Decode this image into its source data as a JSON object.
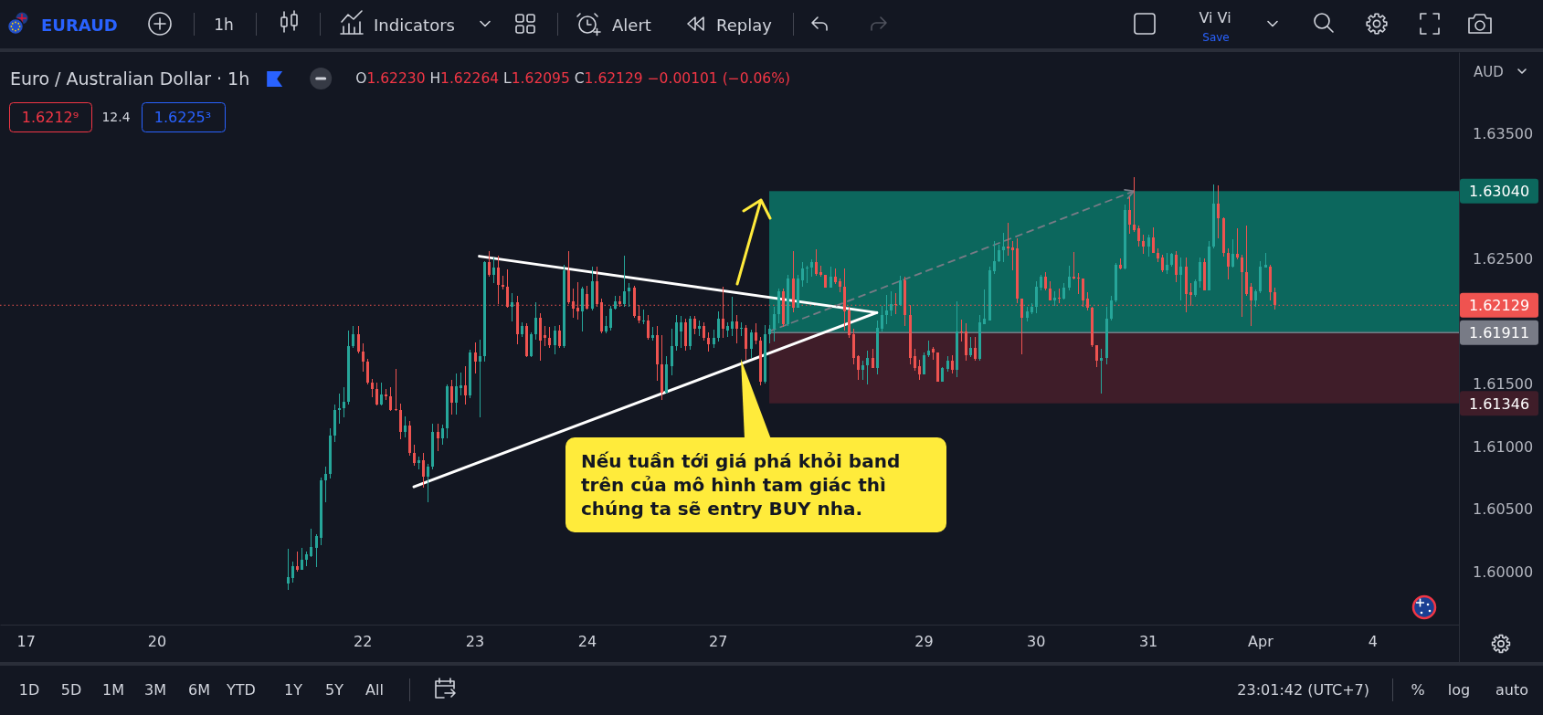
{
  "chart_data": {
    "type": "candlestick",
    "title": "Euro / Australian Dollar · 1h",
    "subtitle": "O1.62230 H1.62264 L1.62095 C1.62129 −0.00101 (−0.06%)",
    "categories": [
      null,
      null,
      null,
      null,
      null,
      "17",
      null,
      null,
      null,
      null,
      null,
      null,
      null,
      null,
      null,
      null,
      null,
      null,
      null,
      null,
      null,
      null,
      null,
      null,
      null,
      null,
      null,
      null,
      null,
      null,
      null,
      null,
      null,
      "20",
      null,
      null,
      null,
      null,
      null,
      null,
      null,
      null,
      null,
      null,
      null,
      null,
      null,
      null,
      null,
      null,
      null,
      null,
      null,
      null,
      null,
      null,
      null,
      null,
      null,
      null,
      null,
      null,
      null,
      null,
      null,
      null,
      null,
      null,
      null,
      null,
      null,
      null,
      null,
      null,
      null,
      null,
      null,
      "22",
      null,
      null,
      null,
      null,
      null,
      null,
      null,
      null,
      null,
      null,
      null,
      null,
      null,
      null,
      null,
      null,
      null,
      null,
      null,
      null,
      null,
      null,
      null,
      "23",
      null,
      null,
      null,
      null,
      null,
      null,
      null,
      null,
      null,
      null,
      null,
      null,
      null,
      null,
      null,
      null,
      null,
      null,
      null,
      null,
      null,
      null,
      null,
      "24",
      null,
      null,
      null,
      null,
      null,
      null,
      null,
      null,
      null,
      null,
      null,
      null,
      null,
      null,
      null,
      null,
      null,
      null,
      null,
      null,
      null,
      null,
      null,
      null,
      null,
      null,
      null,
      "27",
      null,
      null,
      null,
      null,
      null,
      null,
      null,
      null,
      null,
      null,
      null,
      null,
      null,
      null,
      null,
      null,
      null,
      null,
      null,
      null,
      null,
      null,
      null,
      null,
      null,
      null,
      null,
      null,
      null,
      null,
      null,
      null,
      null,
      null,
      null,
      null,
      null,
      null,
      null,
      null,
      null,
      null,
      null,
      "29",
      null,
      null,
      null,
      null,
      null,
      null,
      null,
      null,
      null,
      null,
      null,
      null,
      null,
      null,
      null,
      null,
      null,
      null,
      null,
      null,
      null,
      null,
      null,
      "30",
      null,
      null,
      null,
      null,
      null,
      null,
      null,
      null,
      null,
      null,
      null,
      null,
      null,
      null,
      null,
      null,
      null,
      null,
      null,
      null,
      null,
      null,
      null,
      "31",
      null,
      null,
      null,
      null,
      null,
      null,
      null,
      null,
      null,
      null,
      null,
      null,
      null,
      null,
      null,
      null,
      null,
      null,
      null,
      null,
      null,
      null,
      null,
      "Apr",
      null,
      null,
      null,
      null,
      null,
      null,
      null,
      null,
      null,
      null,
      null,
      null,
      null,
      null,
      null,
      null,
      null,
      null,
      null,
      null,
      null,
      null,
      null,
      "4",
      null,
      null,
      null,
      null,
      null,
      null,
      null,
      null,
      null,
      null,
      null,
      null,
      null,
      null,
      null,
      null,
      null,
      null
    ],
    "ohlc": [
      null,
      null,
      null,
      null,
      null,
      null,
      null,
      null,
      null,
      null,
      null,
      null,
      null,
      null,
      null,
      null,
      null,
      null,
      null,
      null,
      null,
      null,
      null,
      null,
      null,
      null,
      null,
      null,
      null,
      null,
      null,
      null,
      null,
      null,
      null,
      null,
      null,
      null,
      null,
      null,
      null,
      null,
      null,
      null,
      null,
      null,
      null,
      null,
      null,
      null,
      null,
      null,
      null,
      null,
      null,
      null,
      null,
      null,
      null,
      null,
      null,
      [
        1.5991,
        1.6018,
        1.5986,
        1.5996
      ],
      [
        1.5995,
        1.6008,
        1.5992,
        1.6005
      ],
      [
        1.6005,
        1.6016,
        1.6001,
        1.6002
      ],
      [
        1.6002,
        1.6019,
        1.6002,
        1.601
      ],
      [
        1.601,
        1.6016,
        1.6005,
        1.6014
      ],
      [
        1.6013,
        1.6034,
        1.6012,
        1.602
      ],
      [
        1.6019,
        1.603,
        1.6004,
        1.6029
      ],
      [
        1.6027,
        1.6075,
        1.6022,
        1.6073
      ],
      [
        1.6073,
        1.6084,
        1.6056,
        1.6078
      ],
      [
        1.6078,
        1.6114,
        1.6075,
        1.6109
      ],
      [
        1.6109,
        1.6133,
        1.6104,
        1.6129
      ],
      [
        1.6129,
        1.6142,
        1.6119,
        1.6131
      ],
      [
        1.6131,
        1.6147,
        1.6124,
        1.6136
      ],
      [
        1.6136,
        1.6192,
        1.6134,
        1.618
      ],
      [
        1.618,
        1.6196,
        1.6179,
        1.619
      ],
      [
        1.619,
        1.6196,
        1.6175,
        1.6176
      ],
      [
        1.6176,
        1.6182,
        1.616,
        1.6168
      ],
      [
        1.6168,
        1.617,
        1.615,
        1.6151
      ],
      [
        1.6151,
        1.6154,
        1.614,
        1.6146
      ],
      [
        1.6146,
        1.6151,
        1.6133,
        1.6134
      ],
      [
        1.6134,
        1.6151,
        1.6133,
        1.6142
      ],
      [
        1.6142,
        1.6146,
        1.6138,
        1.614
      ],
      [
        1.614,
        1.6147,
        1.6129,
        1.6129
      ],
      [
        1.613,
        1.6162,
        1.6129,
        1.6129
      ],
      [
        1.6129,
        1.6134,
        1.6106,
        1.6112
      ],
      [
        1.6112,
        1.6124,
        1.6108,
        1.6117
      ],
      [
        1.6117,
        1.612,
        1.6093,
        1.6095
      ],
      [
        1.6095,
        1.6101,
        1.6085,
        1.6087
      ],
      [
        1.6087,
        1.6092,
        1.6082,
        1.6089
      ],
      [
        1.6089,
        1.6095,
        1.6068,
        1.6076
      ],
      [
        1.6076,
        1.6086,
        1.6056,
        1.6084
      ],
      [
        1.6084,
        1.6118,
        1.6082,
        1.6112
      ],
      [
        1.6112,
        1.6118,
        1.6097,
        1.6107
      ],
      [
        1.6107,
        1.6117,
        1.6102,
        1.6115
      ],
      [
        1.6115,
        1.6149,
        1.6107,
        1.6148
      ],
      [
        1.6148,
        1.6153,
        1.6126,
        1.6135
      ],
      [
        1.6135,
        1.6158,
        1.6126,
        1.6148
      ],
      [
        1.6147,
        1.6159,
        1.6141,
        1.6149
      ],
      [
        1.6149,
        1.6164,
        1.6134,
        1.6141
      ],
      [
        1.6141,
        1.6177,
        1.6139,
        1.6175
      ],
      [
        1.6175,
        1.6183,
        1.6159,
        1.6168
      ],
      [
        1.6168,
        1.6185,
        1.6124,
        1.6172
      ],
      [
        1.6172,
        1.6248,
        1.6168,
        1.6247
      ],
      [
        1.6247,
        1.6256,
        1.6236,
        1.6237
      ],
      [
        1.6237,
        1.6251,
        1.6231,
        1.6243
      ],
      [
        1.6243,
        1.6252,
        1.6214,
        1.6229
      ],
      [
        1.6229,
        1.6236,
        1.6226,
        1.6228
      ],
      [
        1.6228,
        1.6241,
        1.6211,
        1.6212
      ],
      [
        1.6212,
        1.6222,
        1.62,
        1.6215
      ],
      [
        1.6215,
        1.622,
        1.6182,
        1.619
      ],
      [
        1.619,
        1.6199,
        1.6188,
        1.6196
      ],
      [
        1.6196,
        1.6198,
        1.6172,
        1.6172
      ],
      [
        1.6172,
        1.6191,
        1.6172,
        1.619
      ],
      [
        1.619,
        1.6215,
        1.6186,
        1.6203
      ],
      [
        1.6203,
        1.6206,
        1.6169,
        1.6185
      ],
      [
        1.6189,
        1.6196,
        1.6181,
        1.6187
      ],
      [
        1.6187,
        1.6195,
        1.6179,
        1.6181
      ],
      [
        1.6181,
        1.6196,
        1.6174,
        1.6193
      ],
      [
        1.6193,
        1.6197,
        1.6179,
        1.618
      ],
      [
        1.618,
        1.6245,
        1.6179,
        1.6241
      ],
      [
        1.6241,
        1.6256,
        1.6214,
        1.6215
      ],
      [
        1.6216,
        1.6226,
        1.6203,
        1.621
      ],
      [
        1.6211,
        1.6231,
        1.6202,
        1.6208
      ],
      [
        1.6208,
        1.6227,
        1.6192,
        1.6226
      ],
      [
        1.6222,
        1.6228,
        1.621,
        1.621
      ],
      [
        1.621,
        1.6243,
        1.6209,
        1.6232
      ],
      [
        1.6232,
        1.6243,
        1.6212,
        1.6214
      ],
      [
        1.6215,
        1.6218,
        1.6191,
        1.6192
      ],
      [
        1.6192,
        1.6204,
        1.6191,
        1.6196
      ],
      [
        1.6195,
        1.6212,
        1.6193,
        1.621
      ],
      [
        1.621,
        1.622,
        1.621,
        1.6216
      ],
      [
        1.6216,
        1.622,
        1.6212,
        1.6214
      ],
      [
        1.6214,
        1.6252,
        1.6212,
        1.6224
      ],
      [
        1.6224,
        1.623,
        1.6212,
        1.6227
      ],
      [
        1.6227,
        1.6228,
        1.6203,
        1.6204
      ],
      [
        1.6204,
        1.6213,
        1.6199,
        1.6201
      ],
      [
        1.62,
        1.6209,
        1.6198,
        1.6201
      ],
      [
        1.6201,
        1.6205,
        1.6186,
        1.6187
      ],
      [
        1.6187,
        1.6195,
        1.6185,
        1.6189
      ],
      [
        1.6189,
        1.6196,
        1.6153,
        1.6166
      ],
      [
        1.6166,
        1.6189,
        1.6138,
        1.6143
      ],
      [
        1.6143,
        1.6172,
        1.6143,
        1.6166
      ],
      [
        1.6164,
        1.6194,
        1.6157,
        1.618
      ],
      [
        1.618,
        1.6205,
        1.6177,
        1.6199
      ],
      [
        1.6192,
        1.6204,
        1.6179,
        1.6199
      ],
      [
        1.6199,
        1.6202,
        1.6177,
        1.618
      ],
      [
        1.618,
        1.6204,
        1.6178,
        1.6202
      ],
      [
        1.6202,
        1.6204,
        1.619,
        1.6194
      ],
      [
        1.6194,
        1.62,
        1.6189,
        1.6196
      ],
      [
        1.6196,
        1.6199,
        1.6185,
        1.6187
      ],
      [
        1.6187,
        1.6191,
        1.6176,
        1.6182
      ],
      [
        1.6182,
        1.6193,
        1.6179,
        1.6187
      ],
      [
        1.6187,
        1.6208,
        1.6184,
        1.6202
      ],
      [
        1.6202,
        1.6227,
        1.6187,
        1.6194
      ],
      [
        1.6193,
        1.6199,
        1.6188,
        1.6196
      ],
      [
        1.6194,
        1.6219,
        1.6189,
        1.62
      ],
      [
        1.62,
        1.6205,
        1.6183,
        1.6194
      ],
      [
        1.6194,
        1.6199,
        1.6189,
        1.6195
      ],
      [
        1.6195,
        1.6197,
        1.617,
        1.6178
      ],
      [
        1.6178,
        1.6193,
        1.6171,
        1.6191
      ],
      [
        1.6191,
        1.6198,
        1.6182,
        1.6185
      ],
      [
        1.6185,
        1.6187,
        1.6149,
        1.6152
      ],
      [
        1.6152,
        1.6197,
        1.6151,
        1.619
      ],
      [
        1.619,
        1.6197,
        1.6183,
        1.6194
      ],
      [
        1.6194,
        1.6211,
        1.6184,
        1.6206
      ],
      [
        1.6206,
        1.6226,
        1.6199,
        1.6224
      ],
      [
        1.6224,
        1.6226,
        1.6196,
        1.6198
      ],
      [
        1.6198,
        1.6237,
        1.6197,
        1.6234
      ],
      [
        1.6234,
        1.6256,
        1.6208,
        1.6211
      ],
      [
        1.6211,
        1.6237,
        1.6211,
        1.6234
      ],
      [
        1.6233,
        1.6247,
        1.6228,
        1.6242
      ],
      [
        1.6242,
        1.6244,
        1.6231,
        1.6243
      ],
      [
        1.6243,
        1.6249,
        1.6236,
        1.6247
      ],
      [
        1.6247,
        1.6257,
        1.6237,
        1.6238
      ],
      [
        1.6239,
        1.6244,
        1.6236,
        1.6237
      ],
      [
        1.6237,
        1.6237,
        1.6227,
        1.6227
      ],
      [
        1.6227,
        1.6243,
        1.6227,
        1.6236
      ],
      [
        1.6236,
        1.6242,
        1.623,
        1.6231
      ],
      [
        1.6232,
        1.6234,
        1.6224,
        1.6228
      ],
      [
        1.6228,
        1.6242,
        1.6193,
        1.6208
      ],
      [
        1.6209,
        1.6211,
        1.6187,
        1.6189
      ],
      [
        1.619,
        1.6194,
        1.6166,
        1.6171
      ],
      [
        1.6172,
        1.6173,
        1.6154,
        1.6161
      ],
      [
        1.6161,
        1.6168,
        1.6154,
        1.6165
      ],
      [
        1.6165,
        1.6176,
        1.615,
        1.6171
      ],
      [
        1.6171,
        1.6178,
        1.6163,
        1.6163
      ],
      [
        1.6163,
        1.62,
        1.6158,
        1.6195
      ],
      [
        1.6194,
        1.6212,
        1.6192,
        1.6205
      ],
      [
        1.6205,
        1.6221,
        1.6198,
        1.6209
      ],
      [
        1.6209,
        1.6224,
        1.6205,
        1.6214
      ],
      [
        1.6214,
        1.6222,
        1.6206,
        1.6213
      ],
      [
        1.6213,
        1.6236,
        1.6213,
        1.6233
      ],
      [
        1.6233,
        1.6235,
        1.6197,
        1.6205
      ],
      [
        1.6205,
        1.6213,
        1.6166,
        1.6171
      ],
      [
        1.6172,
        1.6178,
        1.6161,
        1.6163
      ],
      [
        1.6164,
        1.6169,
        1.6154,
        1.6158
      ],
      [
        1.6158,
        1.6175,
        1.6158,
        1.6173
      ],
      [
        1.6173,
        1.6184,
        1.6172,
        1.6177
      ],
      [
        1.6178,
        1.6179,
        1.617,
        1.6175
      ],
      [
        1.6175,
        1.6175,
        1.6152,
        1.6152
      ],
      [
        1.6152,
        1.6163,
        1.6152,
        1.6163
      ],
      [
        1.6162,
        1.6172,
        1.616,
        1.6169
      ],
      [
        1.6169,
        1.6173,
        1.6159,
        1.6161
      ],
      [
        1.6161,
        1.6216,
        1.6156,
        1.6192
      ],
      [
        1.6192,
        1.6201,
        1.6184,
        1.6191
      ],
      [
        1.6192,
        1.6198,
        1.6169,
        1.6173
      ],
      [
        1.6173,
        1.6187,
        1.6172,
        1.6179
      ],
      [
        1.6179,
        1.6187,
        1.6169,
        1.617
      ],
      [
        1.617,
        1.6205,
        1.6169,
        1.6199
      ],
      [
        1.6198,
        1.6225,
        1.6198,
        1.6202
      ],
      [
        1.6201,
        1.6243,
        1.6201,
        1.6241
      ],
      [
        1.624,
        1.6264,
        1.6238,
        1.6248
      ],
      [
        1.6248,
        1.6261,
        1.6248,
        1.6257
      ],
      [
        1.6257,
        1.627,
        1.6248,
        1.626
      ],
      [
        1.626,
        1.6278,
        1.6253,
        1.6258
      ],
      [
        1.6259,
        1.6264,
        1.6241,
        1.6257
      ],
      [
        1.6258,
        1.6266,
        1.6215,
        1.6218
      ],
      [
        1.6218,
        1.6218,
        1.6174,
        1.6203
      ],
      [
        1.6203,
        1.6211,
        1.62,
        1.6208
      ],
      [
        1.6207,
        1.6214,
        1.6206,
        1.6212
      ],
      [
        1.6212,
        1.6232,
        1.6207,
        1.6228
      ],
      [
        1.6227,
        1.6237,
        1.6225,
        1.6236
      ],
      [
        1.6236,
        1.6239,
        1.6225,
        1.6226
      ],
      [
        1.6226,
        1.6232,
        1.6217,
        1.6217
      ],
      [
        1.6217,
        1.6224,
        1.6213,
        1.6219
      ],
      [
        1.6219,
        1.6226,
        1.6215,
        1.6218
      ],
      [
        1.6218,
        1.623,
        1.6218,
        1.6227
      ],
      [
        1.6227,
        1.6244,
        1.6225,
        1.6236
      ],
      [
        1.6236,
        1.6255,
        1.6234,
        1.6234
      ],
      [
        1.6235,
        1.6238,
        1.6222,
        1.6234
      ],
      [
        1.6234,
        1.6234,
        1.6212,
        1.6217
      ],
      [
        1.6218,
        1.6223,
        1.6209,
        1.6211
      ],
      [
        1.6211,
        1.6211,
        1.618,
        1.6181
      ],
      [
        1.6181,
        1.6181,
        1.6164,
        1.6169
      ],
      [
        1.6169,
        1.6178,
        1.6143,
        1.6171
      ],
      [
        1.6171,
        1.6211,
        1.6166,
        1.6202
      ],
      [
        1.6202,
        1.622,
        1.6201,
        1.6217
      ],
      [
        1.6217,
        1.6246,
        1.6216,
        1.6245
      ],
      [
        1.6245,
        1.625,
        1.6242,
        1.6242
      ],
      [
        1.6242,
        1.6293,
        1.6242,
        1.6289
      ],
      [
        1.6289,
        1.6299,
        1.627,
        1.6277
      ],
      [
        1.6277,
        1.6315,
        1.6272,
        1.6273
      ],
      [
        1.6274,
        1.6276,
        1.626,
        1.6264
      ],
      [
        1.6264,
        1.6269,
        1.6254,
        1.626
      ],
      [
        1.626,
        1.6269,
        1.6252,
        1.6267
      ],
      [
        1.6267,
        1.6275,
        1.6255,
        1.6255
      ],
      [
        1.6255,
        1.6258,
        1.6248,
        1.625
      ],
      [
        1.6251,
        1.6253,
        1.624,
        1.6241
      ],
      [
        1.6241,
        1.6254,
        1.6238,
        1.6245
      ],
      [
        1.6245,
        1.6254,
        1.6244,
        1.6254
      ],
      [
        1.6253,
        1.6256,
        1.6232,
        1.6237
      ],
      [
        1.6237,
        1.6251,
        1.6217,
        1.6244
      ],
      [
        1.6244,
        1.6251,
        1.6208,
        1.6222
      ],
      [
        1.6223,
        1.623,
        1.6213,
        1.6221
      ],
      [
        1.6221,
        1.6233,
        1.622,
        1.6232
      ],
      [
        1.6232,
        1.6251,
        1.6227,
        1.6247
      ],
      [
        1.6247,
        1.625,
        1.6225,
        1.6225
      ],
      [
        1.6225,
        1.6264,
        1.6225,
        1.626
      ],
      [
        1.626,
        1.6309,
        1.6259,
        1.6294
      ],
      [
        1.6294,
        1.6308,
        1.6267,
        1.6282
      ],
      [
        1.6282,
        1.6283,
        1.6252,
        1.6255
      ],
      [
        1.6255,
        1.6258,
        1.6234,
        1.6244
      ],
      [
        1.6244,
        1.6265,
        1.6243,
        1.6254
      ],
      [
        1.6254,
        1.6274,
        1.625,
        1.6251
      ],
      [
        1.6251,
        1.6253,
        1.6204,
        1.6239
      ],
      [
        1.6239,
        1.6276,
        1.6221,
        1.6222
      ],
      [
        1.6228,
        1.623,
        1.6197,
        1.6217
      ],
      [
        1.6217,
        1.6225,
        1.6212,
        1.6224
      ],
      [
        1.6224,
        1.6248,
        1.6223,
        1.6244
      ],
      [
        1.6243,
        1.6254,
        1.6243,
        1.6245
      ],
      [
        1.6244,
        1.6245,
        1.6217,
        1.6223
      ],
      [
        1.6223,
        1.62264,
        1.62095,
        1.62129
      ],
      null,
      null,
      null,
      null,
      null,
      null,
      null,
      null,
      null,
      null,
      null,
      null,
      null,
      null,
      null,
      null,
      null,
      null,
      null,
      null,
      null,
      null,
      null,
      null,
      null,
      null,
      null,
      null,
      null,
      null,
      null,
      null,
      null,
      null,
      null,
      null,
      null,
      null,
      null
    ],
    "series": [
      {
        "type": "line",
        "color": "#ffffff",
        "values": [
          null,
          null,
          null,
          null,
          null,
          null,
          null,
          null,
          null,
          null,
          null,
          null,
          null,
          null,
          null,
          null,
          null,
          null,
          null,
          null,
          null,
          null,
          null,
          null,
          null,
          null,
          null,
          null,
          null,
          null,
          null,
          null,
          null,
          null,
          null,
          null,
          null,
          null,
          null,
          null,
          null,
          null,
          null,
          null,
          null,
          null,
          null,
          null,
          null,
          null,
          null,
          null,
          null,
          null,
          null,
          null,
          null,
          null,
          null,
          null,
          null,
          null,
          null,
          null,
          null,
          null,
          null,
          null,
          null,
          null,
          null,
          null,
          null,
          null,
          null,
          null,
          null,
          null,
          null,
          null,
          null,
          null,
          null,
          null,
          null,
          null,
          null,
          null,
          null,
          null,
          null,
          null,
          null,
          null,
          null,
          null,
          null,
          null,
          null,
          null,
          null,
          null,
          1.6252,
          null,
          null,
          null,
          null,
          null,
          null,
          null,
          null,
          null,
          null,
          null,
          null,
          null,
          null,
          null,
          null,
          null,
          null,
          null,
          null,
          null,
          null,
          null,
          null,
          null,
          null,
          null,
          null,
          null,
          null,
          null,
          null,
          null,
          null,
          null,
          null,
          null,
          null,
          null,
          null,
          null,
          null,
          null,
          null,
          null,
          null,
          null,
          null,
          null,
          null,
          null,
          null,
          null,
          null,
          null,
          null,
          null,
          null,
          null,
          null,
          null,
          null,
          null,
          null,
          null,
          null,
          null,
          null,
          null,
          null,
          null,
          null,
          null,
          null,
          null,
          null,
          null,
          null,
          null,
          null,
          null,
          null,
          null,
          null,
          1.6207,
          null,
          null,
          null,
          null,
          null,
          null,
          null,
          null,
          null,
          null,
          null,
          null,
          null,
          null,
          null,
          null,
          null,
          null,
          null,
          null,
          null,
          null,
          null,
          null,
          null,
          null,
          null,
          null,
          null,
          null,
          null,
          null,
          null,
          null,
          null,
          null,
          null,
          null,
          null,
          null,
          null,
          null,
          null,
          null,
          null,
          null,
          null,
          null,
          null,
          null,
          null,
          null,
          null,
          null,
          null,
          null,
          null,
          null,
          null,
          null,
          null,
          null,
          null,
          null,
          null,
          null,
          null,
          null,
          null,
          null,
          null,
          null,
          null,
          null,
          null,
          null,
          null,
          null,
          null,
          null,
          null,
          null,
          null,
          null,
          null,
          null,
          null,
          null,
          null,
          null,
          null,
          null,
          null,
          null,
          null,
          null,
          null,
          null,
          null,
          null,
          null,
          null,
          null,
          null,
          null,
          null,
          null,
          null,
          null,
          null,
          null,
          null,
          null,
          null,
          null,
          null,
          null,
          null,
          null,
          null,
          null,
          null,
          null,
          null
        ]
      },
      {
        "type": "line",
        "color": "#ffffff",
        "values": [
          null,
          null,
          null,
          null,
          null,
          null,
          null,
          null,
          null,
          null,
          null,
          null,
          null,
          null,
          null,
          null,
          null,
          null,
          null,
          null,
          null,
          null,
          null,
          null,
          null,
          null,
          null,
          null,
          null,
          null,
          null,
          null,
          null,
          null,
          null,
          null,
          null,
          null,
          null,
          null,
          null,
          null,
          null,
          null,
          null,
          null,
          null,
          null,
          null,
          null,
          null,
          null,
          null,
          null,
          null,
          null,
          null,
          null,
          null,
          null,
          null,
          null,
          null,
          null,
          null,
          null,
          null,
          null,
          null,
          null,
          null,
          null,
          null,
          null,
          null,
          null,
          null,
          null,
          null,
          null,
          null,
          null,
          null,
          null,
          null,
          null,
          null,
          null,
          1.6068,
          null,
          null,
          null,
          null,
          null,
          null,
          null,
          null,
          null,
          null,
          null,
          null,
          null,
          null,
          null,
          null,
          null,
          null,
          null,
          null,
          null,
          null,
          null,
          null,
          null,
          null,
          null,
          null,
          null,
          null,
          null,
          null,
          null,
          null,
          null,
          null,
          null,
          null,
          null,
          null,
          null,
          null,
          null,
          null,
          null,
          null,
          null,
          null,
          null,
          null,
          null,
          null,
          null,
          null,
          null,
          null,
          null,
          null,
          null,
          null,
          null,
          null,
          null,
          null,
          null,
          null,
          null,
          null,
          null,
          null,
          null,
          null,
          null,
          null,
          null,
          null,
          null,
          null,
          null,
          null,
          null,
          null,
          null,
          null,
          null,
          null,
          null,
          null,
          null,
          null,
          null,
          null,
          null,
          null,
          null,
          null,
          null,
          null,
          1.6207,
          null,
          null,
          null,
          null,
          null,
          null,
          null,
          null,
          null,
          null,
          null,
          null,
          null,
          null,
          null,
          null,
          null,
          null,
          null,
          null,
          null,
          null,
          null,
          null,
          null,
          null,
          null,
          null,
          null,
          null,
          null,
          null,
          null,
          null,
          null,
          null,
          null,
          null,
          null,
          null,
          null,
          null,
          null,
          null,
          null,
          null,
          null,
          null,
          null,
          null,
          null,
          null,
          null,
          null,
          null,
          null,
          null,
          null,
          null,
          null,
          null,
          null,
          null,
          null,
          null,
          null,
          null,
          null,
          null,
          null,
          null,
          null,
          null,
          null,
          null,
          null,
          null,
          null,
          null,
          null,
          null,
          null,
          null,
          null,
          null,
          null,
          null,
          null,
          null,
          null,
          null,
          null,
          null,
          null,
          null,
          null,
          null,
          null,
          null,
          null,
          null,
          null,
          null,
          null,
          null,
          null,
          null,
          null,
          null,
          null,
          null,
          null,
          null,
          null,
          null,
          null,
          null,
          null,
          null,
          null,
          null,
          null,
          null,
          null
        ]
      },
      {
        "type": "line",
        "color": "#787b86",
        "line_style": "dashed",
        "values": [
          null,
          null,
          null,
          null,
          null,
          null,
          null,
          null,
          null,
          null,
          null,
          null,
          null,
          null,
          null,
          null,
          null,
          null,
          null,
          null,
          null,
          null,
          null,
          null,
          null,
          null,
          null,
          null,
          null,
          null,
          null,
          null,
          null,
          null,
          null,
          null,
          null,
          null,
          null,
          null,
          null,
          null,
          null,
          null,
          null,
          null,
          null,
          null,
          null,
          null,
          null,
          null,
          null,
          null,
          null,
          null,
          null,
          null,
          null,
          null,
          null,
          null,
          null,
          null,
          null,
          null,
          null,
          null,
          null,
          null,
          null,
          null,
          null,
          null,
          null,
          null,
          null,
          null,
          null,
          null,
          null,
          null,
          null,
          null,
          null,
          null,
          null,
          null,
          null,
          null,
          null,
          null,
          null,
          null,
          null,
          null,
          null,
          null,
          null,
          null,
          null,
          null,
          null,
          null,
          null,
          null,
          null,
          null,
          null,
          null,
          null,
          null,
          null,
          null,
          null,
          null,
          null,
          null,
          null,
          null,
          null,
          null,
          null,
          null,
          null,
          null,
          null,
          null,
          null,
          null,
          null,
          null,
          null,
          null,
          null,
          null,
          null,
          null,
          null,
          null,
          null,
          null,
          null,
          null,
          null,
          null,
          null,
          null,
          null,
          null,
          null,
          null,
          null,
          null,
          null,
          null,
          null,
          null,
          null,
          null,
          null,
          null,
          null,
          null,
          1.6192,
          null,
          null,
          null,
          null,
          null,
          null,
          null,
          null,
          null,
          null,
          null,
          null,
          null,
          null,
          null,
          null,
          null,
          null,
          null,
          null,
          null,
          null,
          null,
          null,
          null,
          null,
          null,
          null,
          null,
          null,
          null,
          null,
          null,
          null,
          null,
          null,
          null,
          null,
          null,
          null,
          null,
          null,
          null,
          null,
          null,
          null,
          null,
          null,
          null,
          null,
          null,
          null,
          null,
          null,
          null,
          null,
          null,
          null,
          null,
          null,
          null,
          null,
          null,
          null,
          null,
          null,
          null,
          null,
          null,
          null,
          null,
          null,
          null,
          null,
          null,
          null,
          null,
          1.6304,
          null,
          null,
          null,
          null,
          null,
          null,
          null,
          null,
          null,
          null,
          null,
          null,
          null,
          null,
          null,
          null,
          null,
          null,
          null,
          null,
          null,
          null,
          null,
          null,
          null,
          null,
          null,
          null,
          null,
          null,
          null,
          null,
          null,
          null,
          null,
          null,
          null,
          null,
          null,
          null,
          null,
          null,
          null,
          null,
          null,
          null,
          null,
          null,
          null,
          null,
          null,
          null,
          null,
          null,
          null,
          null,
          null,
          null,
          null,
          null,
          null,
          null,
          null,
          null,
          null,
          null,
          null,
          null,
          null
        ]
      }
    ],
    "ylim": [
      1.5958,
      1.6415
    ],
    "yticks": [
      {
        "value": 1.6,
        "label": "1.60000"
      },
      {
        "value": 1.605,
        "label": "1.60500"
      },
      {
        "value": 1.61,
        "label": "1.61000"
      },
      {
        "value": 1.615,
        "label": "1.61500"
      },
      {
        "value": 1.625,
        "label": "1.62500"
      },
      {
        "value": 1.635,
        "label": "1.63500"
      }
    ],
    "ref_lines": [
      {
        "axis": "y",
        "value": 1.62129,
        "label": "1.62129",
        "color": "#ef5350",
        "line_style": "dotted"
      },
      {
        "axis": "y",
        "value": 1.61911,
        "label": "1.61911",
        "color": "#787b86"
      }
    ],
    "bands": [
      {
        "axis": "y",
        "from": 1.61911,
        "to": 1.6304,
        "label": "1.63040",
        "color": "#0c675d"
      },
      {
        "axis": "y",
        "from": 1.61911,
        "to": 1.61346,
        "label": "1.61346",
        "color": "#3f1d29"
      }
    ],
    "annotations": [
      "Nếu tuần tới giá phá khỏi band trên của mô hình tam giác thì chúng ta sẽ entry BUY nha.",
      "EURAUD",
      "1h",
      "Indicators",
      "Alert",
      "Replay",
      "Vi Vi",
      "Save",
      "1.6212⁹",
      "12.4",
      "1.6225³",
      "AUD",
      "1D",
      "5D",
      "1M",
      "3M",
      "6M",
      "YTD",
      "1Y",
      "5Y",
      "All",
      "23:01:42 (UTC+7)",
      "%",
      "log",
      "auto"
    ]
  }
}
